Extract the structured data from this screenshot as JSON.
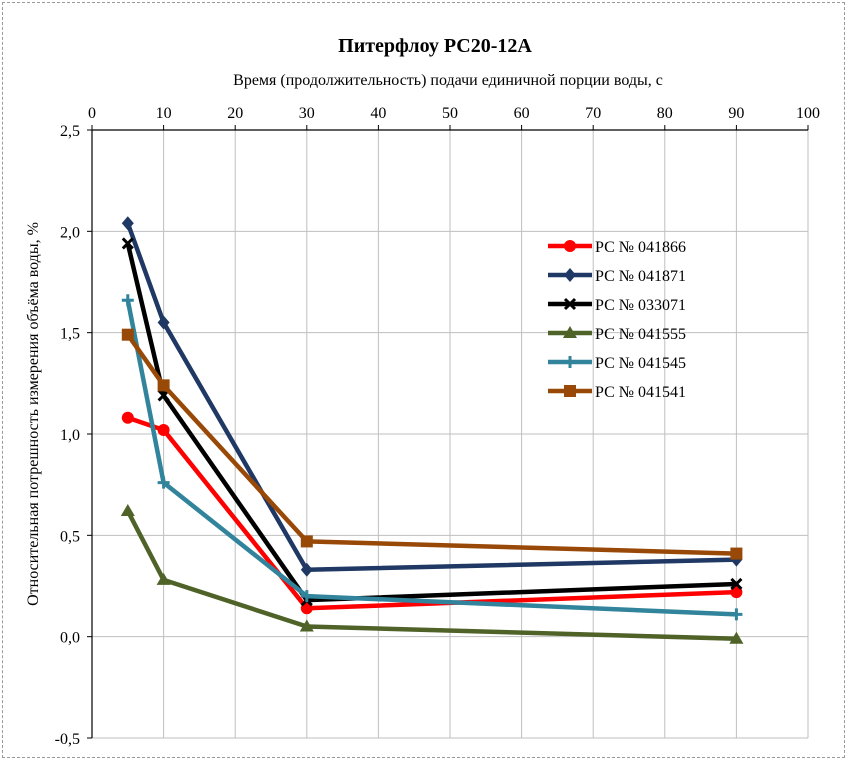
{
  "chart_data": {
    "type": "line",
    "title": "Питерфлоу  РС20-12А",
    "xlabel": "Время (продолжительность) подачи единичной порции воды, с",
    "ylabel": "Относительная потрешность измерения объёма воды, %",
    "x_axis_position": "top",
    "xlim": [
      0,
      100
    ],
    "ylim": [
      -0.5,
      2.5
    ],
    "xticks": [
      "0",
      "10",
      "20",
      "30",
      "40",
      "50",
      "60",
      "70",
      "80",
      "90",
      "100"
    ],
    "yticks": [
      "-0,5",
      "0,0",
      "0,5",
      "1,0",
      "1,5",
      "2,0",
      "2,5"
    ],
    "grid": true,
    "legend_position": "right",
    "x": [
      5,
      10,
      30,
      90
    ],
    "series": [
      {
        "name": "РС № 041866",
        "color": "#ff0000",
        "marker": "circle",
        "values": [
          1.08,
          1.02,
          0.14,
          0.22
        ]
      },
      {
        "name": "РС № 041871",
        "color": "#1f3864",
        "marker": "diamond",
        "values": [
          2.04,
          1.55,
          0.33,
          0.38
        ]
      },
      {
        "name": "РС № 033071",
        "color": "#000000",
        "marker": "x",
        "values": [
          1.94,
          1.19,
          0.18,
          0.26
        ]
      },
      {
        "name": "РС № 041555",
        "color": "#4f6228",
        "marker": "triangle",
        "values": [
          0.62,
          0.28,
          0.05,
          -0.01
        ]
      },
      {
        "name": "РС № 041545",
        "color": "#31849b",
        "marker": "plus",
        "values": [
          1.66,
          0.76,
          0.2,
          0.11
        ]
      },
      {
        "name": "РС № 041541",
        "color": "#984807",
        "marker": "square",
        "values": [
          1.49,
          1.24,
          0.47,
          0.41
        ]
      }
    ]
  }
}
